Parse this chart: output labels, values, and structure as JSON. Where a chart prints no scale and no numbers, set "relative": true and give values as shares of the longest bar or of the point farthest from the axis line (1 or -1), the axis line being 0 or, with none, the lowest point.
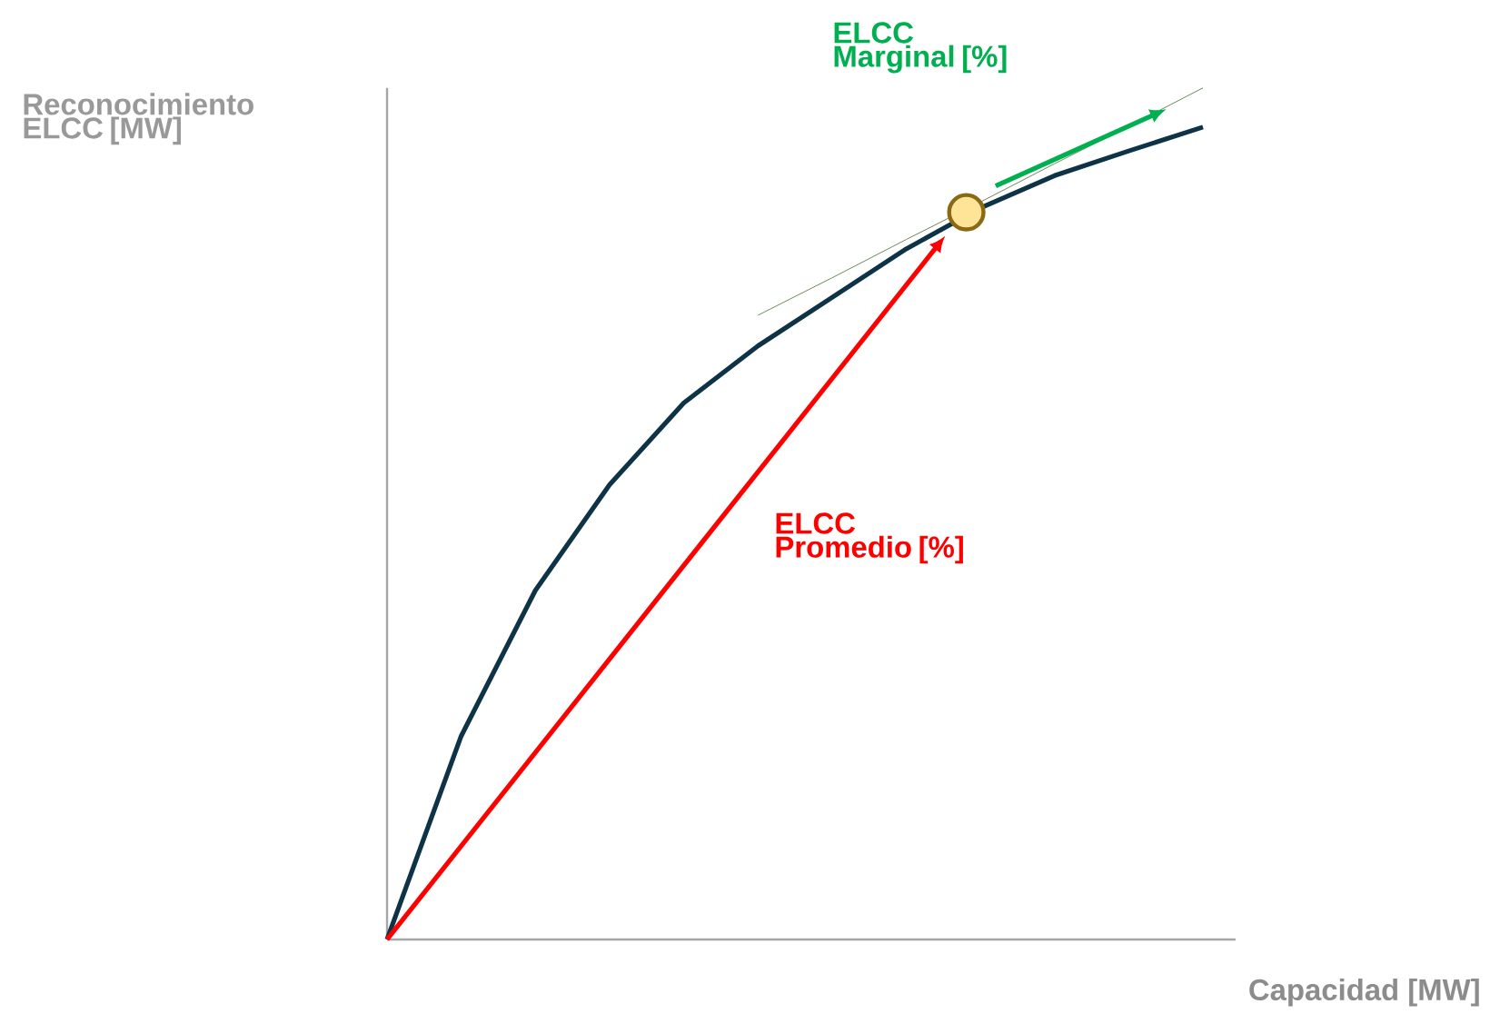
{
  "chart_data": {
    "type": "line",
    "relative": true,
    "xlabel": "Capacidad  [MW]",
    "ylabel": "Reconocimiento ELCC [MW]",
    "annotations": [
      "ELCC Marginal [%]",
      "ELCC Promedio [%]"
    ],
    "categories": [
      null,
      null,
      null,
      null,
      null,
      null,
      null,
      null,
      null,
      null,
      null,
      null
    ],
    "series": [
      {
        "color": "#0e3347",
        "values": [
          0,
          0.239,
          0.41,
          0.534,
          0.63,
          0.697,
          0.754,
          0.811,
          0.859,
          0.897,
          0.926,
          0.954
        ]
      },
      {
        "color": "#6b8a5a",
        "values": [
          null,
          null,
          null,
          null,
          null,
          0.733,
          0.777,
          0.822,
          0.866,
          0.911,
          0.955,
          1.0
        ]
      }
    ]
  }
}
